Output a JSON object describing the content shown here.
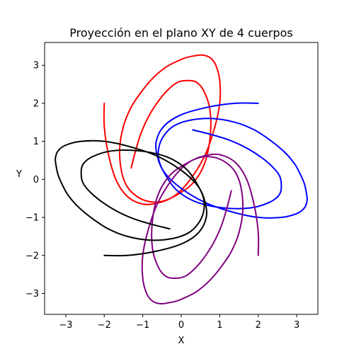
{
  "chart_data": {
    "type": "line",
    "title": "Proyección en el plano XY de 4 cuerpos",
    "xlabel": "X",
    "ylabel": "Y",
    "xlim": [
      -3.55,
      3.55
    ],
    "ylim": [
      -3.55,
      3.6
    ],
    "x_ticks": [
      -3,
      -2,
      -1,
      0,
      1,
      2,
      3
    ],
    "y_ticks": [
      -3,
      -2,
      -1,
      0,
      1,
      2,
      3
    ],
    "x_tick_labels": [
      "−3",
      "−2",
      "−1",
      "0",
      "1",
      "2",
      "3"
    ],
    "y_tick_labels": [
      "−3",
      "−2",
      "−1",
      "0",
      "1",
      "2",
      "3"
    ],
    "grid": false,
    "series": [
      {
        "color": "#ff0000",
        "x": [
          -2.0,
          -2.0,
          -1.9,
          -1.7,
          -1.4,
          -1.0,
          -0.6,
          -0.2,
          0.2,
          0.6,
          0.85,
          1.0,
          1.0,
          0.9,
          0.75,
          0.55,
          0.35,
          0.12,
          -0.12,
          -0.4,
          -0.7,
          -1.0,
          -1.3,
          -1.5,
          -1.6,
          -1.55,
          -1.4,
          -1.15,
          -0.85,
          -0.5,
          -0.1,
          0.3,
          0.6,
          0.75,
          0.75,
          0.6,
          0.4,
          0.15,
          -0.1,
          -0.35,
          -0.6,
          -0.85,
          -1.05,
          -1.2,
          -1.3
        ],
        "y": [
          2.0,
          1.4,
          0.7,
          0.0,
          -0.45,
          -0.65,
          -0.62,
          -0.45,
          -0.05,
          0.6,
          1.3,
          2.0,
          2.6,
          3.0,
          3.2,
          3.27,
          3.25,
          3.2,
          3.1,
          2.95,
          2.7,
          2.35,
          1.9,
          1.4,
          0.8,
          0.2,
          -0.2,
          -0.45,
          -0.58,
          -0.58,
          -0.4,
          -0.1,
          0.4,
          1.1,
          1.8,
          2.3,
          2.55,
          2.6,
          2.55,
          2.35,
          2.05,
          1.65,
          1.2,
          0.7,
          0.3
        ]
      },
      {
        "color": "#0000ff",
        "x": [
          2.0,
          1.4,
          0.7,
          0.0,
          -0.45,
          -0.65,
          -0.62,
          -0.45,
          -0.05,
          0.6,
          1.3,
          2.0,
          2.6,
          3.0,
          3.2,
          3.27,
          3.25,
          3.2,
          3.1,
          2.95,
          2.7,
          2.35,
          1.9,
          1.4,
          0.8,
          0.2,
          -0.2,
          -0.45,
          -0.58,
          -0.58,
          -0.4,
          -0.1,
          0.4,
          1.1,
          1.8,
          2.3,
          2.55,
          2.6,
          2.55,
          2.35,
          2.05,
          1.65,
          1.2,
          0.7,
          0.3
        ],
        "y": [
          2.0,
          2.0,
          1.9,
          1.7,
          1.4,
          1.0,
          0.6,
          0.2,
          -0.2,
          -0.6,
          -0.85,
          -1.0,
          -1.0,
          -0.9,
          -0.75,
          -0.55,
          -0.35,
          -0.12,
          0.12,
          0.4,
          0.7,
          1.0,
          1.3,
          1.5,
          1.6,
          1.55,
          1.4,
          1.15,
          0.85,
          0.5,
          0.1,
          -0.3,
          -0.6,
          -0.75,
          -0.75,
          -0.6,
          -0.4,
          -0.15,
          0.1,
          0.35,
          0.6,
          0.85,
          1.05,
          1.2,
          1.3
        ]
      },
      {
        "color": "#800080",
        "x": [
          2.0,
          2.0,
          1.9,
          1.7,
          1.4,
          1.0,
          0.6,
          0.2,
          -0.2,
          -0.6,
          -0.85,
          -1.0,
          -1.0,
          -0.9,
          -0.75,
          -0.55,
          -0.35,
          -0.12,
          0.12,
          0.4,
          0.7,
          1.0,
          1.3,
          1.5,
          1.6,
          1.55,
          1.4,
          1.15,
          0.85,
          0.5,
          0.1,
          -0.3,
          -0.6,
          -0.75,
          -0.75,
          -0.6,
          -0.4,
          -0.15,
          0.1,
          0.35,
          0.6,
          0.85,
          1.05,
          1.2,
          1.3
        ],
        "y": [
          -2.0,
          -1.4,
          -0.7,
          0.0,
          0.45,
          0.65,
          0.62,
          0.45,
          0.05,
          -0.6,
          -1.3,
          -2.0,
          -2.6,
          -3.0,
          -3.2,
          -3.27,
          -3.25,
          -3.2,
          -3.1,
          -2.95,
          -2.7,
          -2.35,
          -1.9,
          -1.4,
          -0.8,
          -0.2,
          0.2,
          0.45,
          0.58,
          0.58,
          0.4,
          0.1,
          -0.4,
          -1.1,
          -1.8,
          -2.3,
          -2.55,
          -2.6,
          -2.55,
          -2.35,
          -2.05,
          -1.65,
          -1.2,
          -0.7,
          -0.3
        ]
      },
      {
        "color": "#000000",
        "x": [
          -2.0,
          -1.4,
          -0.7,
          0.0,
          0.45,
          0.65,
          0.62,
          0.45,
          0.05,
          -0.6,
          -1.3,
          -2.0,
          -2.6,
          -3.0,
          -3.2,
          -3.27,
          -3.25,
          -3.2,
          -3.1,
          -2.95,
          -2.7,
          -2.35,
          -1.9,
          -1.4,
          -0.8,
          -0.2,
          0.2,
          0.45,
          0.58,
          0.58,
          0.4,
          0.1,
          -0.4,
          -1.1,
          -1.8,
          -2.3,
          -2.55,
          -2.6,
          -2.55,
          -2.35,
          -2.05,
          -1.65,
          -1.2,
          -0.7,
          -0.3
        ],
        "y": [
          -2.0,
          -2.0,
          -1.9,
          -1.7,
          -1.4,
          -1.0,
          -0.6,
          -0.2,
          0.2,
          0.6,
          0.85,
          1.0,
          1.0,
          0.9,
          0.75,
          0.55,
          0.35,
          0.12,
          -0.12,
          -0.4,
          -0.7,
          -1.0,
          -1.3,
          -1.5,
          -1.6,
          -1.55,
          -1.4,
          -1.15,
          -0.85,
          -0.5,
          -0.1,
          0.3,
          0.6,
          0.75,
          0.75,
          0.6,
          0.4,
          0.15,
          -0.1,
          -0.35,
          -0.6,
          -0.85,
          -1.05,
          -1.2,
          -1.3
        ]
      }
    ]
  }
}
